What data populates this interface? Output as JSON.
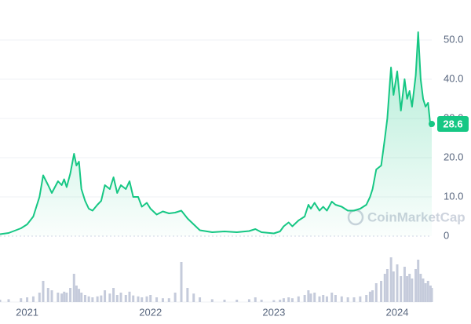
{
  "chart_data": {
    "type": "line",
    "x": [
      2020.78,
      2020.85,
      2020.95,
      2021.0,
      2021.05,
      2021.1,
      2021.13,
      2021.17,
      2021.2,
      2021.25,
      2021.28,
      2021.3,
      2021.32,
      2021.35,
      2021.38,
      2021.4,
      2021.42,
      2021.44,
      2021.47,
      2021.5,
      2021.53,
      2021.57,
      2021.6,
      2021.63,
      2021.67,
      2021.7,
      2021.73,
      2021.76,
      2021.8,
      2021.83,
      2021.86,
      2021.9,
      2021.93,
      2021.97,
      2022.0,
      2022.05,
      2022.1,
      2022.15,
      2022.2,
      2022.25,
      2022.3,
      2022.35,
      2022.4,
      2022.5,
      2022.6,
      2022.7,
      2022.8,
      2022.85,
      2022.9,
      2023.0,
      2023.05,
      2023.08,
      2023.12,
      2023.15,
      2023.2,
      2023.25,
      2023.28,
      2023.3,
      2023.33,
      2023.37,
      2023.4,
      2023.43,
      2023.47,
      2023.5,
      2023.55,
      2023.6,
      2023.65,
      2023.7,
      2023.75,
      2023.78,
      2023.8,
      2023.83,
      2023.87,
      2023.9,
      2023.92,
      2023.95,
      2023.97,
      2024.0,
      2024.03,
      2024.06,
      2024.08,
      2024.1,
      2024.12,
      2024.15,
      2024.17,
      2024.19,
      2024.21,
      2024.23,
      2024.25,
      2024.27,
      2024.28
    ],
    "series": [
      {
        "color": "#16c784",
        "values": [
          0.5,
          0.8,
          2,
          3,
          5,
          10,
          15.5,
          13,
          11,
          14,
          13,
          14.5,
          12.5,
          16,
          21,
          18,
          19,
          12,
          9,
          7,
          6.5,
          8,
          9,
          13,
          12,
          15,
          11,
          13,
          12,
          14,
          10,
          10,
          7.5,
          8.5,
          7,
          5.5,
          6.3,
          5.8,
          6,
          6.5,
          4.5,
          3,
          1.5,
          1,
          1.2,
          1,
          1.3,
          1.8,
          1,
          0.7,
          1.2,
          2.5,
          3.5,
          2.5,
          4,
          5,
          8,
          7,
          8.5,
          6.5,
          7.5,
          6.5,
          8.8,
          8,
          7.5,
          6.5,
          6.5,
          7,
          8,
          10,
          12,
          17,
          18,
          25,
          30,
          43,
          36,
          42,
          32,
          40,
          35,
          37,
          33,
          41,
          52,
          40,
          35,
          33,
          34,
          28,
          28.6
        ]
      }
    ],
    "volume": {
      "color": "#c5cbdb",
      "ylim": [
        0,
        100
      ],
      "values": [
        5,
        6,
        8,
        10,
        12,
        20,
        45,
        30,
        25,
        20,
        18,
        22,
        20,
        30,
        60,
        35,
        28,
        20,
        15,
        12,
        10,
        12,
        14,
        25,
        18,
        30,
        15,
        20,
        15,
        22,
        14,
        12,
        10,
        12,
        15,
        10,
        8,
        8,
        20,
        85,
        30,
        18,
        10,
        6,
        5,
        5,
        6,
        10,
        5,
        4,
        5,
        8,
        10,
        8,
        12,
        15,
        25,
        18,
        20,
        12,
        15,
        12,
        20,
        15,
        12,
        10,
        10,
        12,
        15,
        22,
        25,
        40,
        45,
        60,
        70,
        95,
        65,
        80,
        55,
        75,
        55,
        60,
        50,
        70,
        90,
        60,
        50,
        40,
        45,
        35,
        30
      ]
    },
    "current_price": 28.6,
    "xlim": [
      2020.78,
      2024.28
    ],
    "xticks": [
      2021,
      2022,
      2023,
      2024
    ],
    "ylim": [
      0,
      50
    ],
    "yticks": [
      0,
      {
        "value": 10,
        "label": "10.0"
      },
      {
        "value": 20,
        "label": "20.0"
      },
      {
        "value": 30,
        "label": "30.0"
      },
      {
        "value": 40,
        "label": "40.0"
      },
      {
        "value": 50,
        "label": "50.0"
      }
    ],
    "grid": true,
    "watermark": "CoinMarketCap"
  }
}
